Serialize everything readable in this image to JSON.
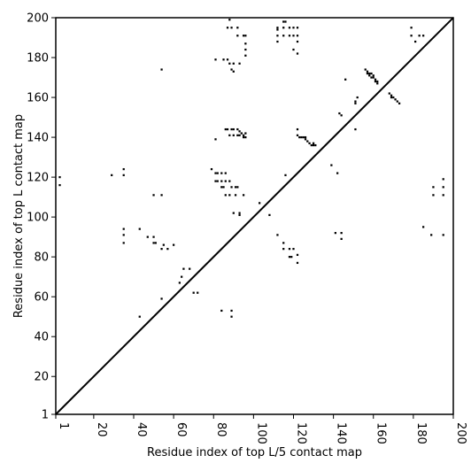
{
  "chart_data": {
    "type": "heatmap",
    "title": "",
    "xlabel": "Residue index of top L/5 contact map",
    "ylabel": "Residue index of top L contact map",
    "xlim": [
      1,
      200
    ],
    "ylim": [
      1,
      200
    ],
    "x_ticks": [
      1,
      20,
      40,
      60,
      80,
      100,
      120,
      140,
      160,
      180,
      200
    ],
    "y_ticks": [
      1,
      20,
      40,
      60,
      80,
      100,
      120,
      140,
      160,
      180,
      200
    ],
    "x_tick_labels": [
      "1",
      "20",
      "40",
      "60",
      "80",
      "100",
      "120",
      "140",
      "160",
      "180",
      "200"
    ],
    "y_tick_labels": [
      "1",
      "20",
      "40",
      "60",
      "80",
      "100",
      "120",
      "140",
      "160",
      "180",
      "200"
    ],
    "x_tick_rotation": -90,
    "diagonal": [
      [
        1,
        1
      ],
      [
        200,
        200
      ]
    ],
    "grid": false,
    "colors": {
      "contact": "#000000",
      "background": "#ffffff"
    },
    "lower_triangle_contacts": [
      [
        29,
        121
      ],
      [
        35,
        121
      ],
      [
        35,
        124
      ],
      [
        35,
        87
      ],
      [
        35,
        91
      ],
      [
        35,
        94
      ],
      [
        43,
        94
      ],
      [
        43,
        50
      ],
      [
        47,
        90
      ],
      [
        50,
        87
      ],
      [
        51,
        87
      ],
      [
        50,
        90
      ],
      [
        54,
        84
      ],
      [
        55,
        86
      ],
      [
        57,
        84
      ],
      [
        60,
        86
      ],
      [
        54,
        59
      ],
      [
        54,
        111
      ],
      [
        50,
        111
      ],
      [
        63,
        67
      ],
      [
        64,
        70
      ],
      [
        65,
        74
      ],
      [
        68,
        74
      ],
      [
        70,
        62
      ],
      [
        72,
        62
      ],
      [
        79,
        124
      ],
      [
        81,
        122
      ],
      [
        81,
        118
      ],
      [
        82,
        118
      ],
      [
        82,
        122
      ],
      [
        84,
        122
      ],
      [
        84,
        118
      ],
      [
        86,
        118
      ],
      [
        86,
        122
      ],
      [
        88,
        118
      ],
      [
        84,
        115
      ],
      [
        85,
        115
      ],
      [
        86,
        111
      ],
      [
        89,
        115
      ],
      [
        88,
        111
      ],
      [
        91,
        111
      ],
      [
        91,
        115
      ],
      [
        92,
        115
      ],
      [
        95,
        111
      ],
      [
        90,
        102
      ],
      [
        93,
        101
      ],
      [
        93,
        102
      ],
      [
        84,
        53
      ],
      [
        89,
        53
      ],
      [
        89,
        50
      ],
      [
        103,
        107
      ],
      [
        108,
        101
      ],
      [
        112,
        91
      ],
      [
        115,
        87
      ],
      [
        115,
        84
      ],
      [
        118,
        84
      ],
      [
        118,
        80
      ],
      [
        119,
        80
      ],
      [
        120,
        84
      ],
      [
        122,
        81
      ],
      [
        122,
        77
      ],
      [
        116,
        121
      ],
      [
        139,
        126
      ],
      [
        141,
        92
      ],
      [
        142,
        122
      ],
      [
        144,
        92
      ],
      [
        144,
        89
      ],
      [
        185,
        95
      ],
      [
        189,
        91
      ],
      [
        190,
        111
      ],
      [
        190,
        115
      ],
      [
        195,
        115
      ],
      [
        195,
        111
      ],
      [
        195,
        119
      ],
      [
        195,
        91
      ]
    ],
    "upper_triangle_contacts": [
      [
        3,
        120
      ],
      [
        3,
        116
      ],
      [
        54,
        174
      ],
      [
        81,
        179
      ],
      [
        85,
        179
      ],
      [
        87,
        179
      ],
      [
        88,
        177
      ],
      [
        89,
        174
      ],
      [
        90,
        177
      ],
      [
        90,
        173
      ],
      [
        93,
        177
      ],
      [
        87,
        195
      ],
      [
        89,
        195
      ],
      [
        92,
        195
      ],
      [
        92,
        191
      ],
      [
        95,
        191
      ],
      [
        96,
        191
      ],
      [
        96,
        187
      ],
      [
        96,
        184
      ],
      [
        96,
        181
      ],
      [
        88,
        199
      ],
      [
        81,
        139
      ],
      [
        86,
        144
      ],
      [
        87,
        144
      ],
      [
        89,
        144
      ],
      [
        88,
        141
      ],
      [
        90,
        141
      ],
      [
        90,
        144
      ],
      [
        92,
        144
      ],
      [
        92,
        141
      ],
      [
        93,
        141
      ],
      [
        93,
        143
      ],
      [
        94,
        142
      ],
      [
        95,
        140
      ],
      [
        95,
        141
      ],
      [
        96,
        142
      ],
      [
        96,
        140
      ],
      [
        112,
        195
      ],
      [
        112,
        194
      ],
      [
        112,
        191
      ],
      [
        112,
        188
      ],
      [
        115,
        195
      ],
      [
        115,
        191
      ],
      [
        115,
        198
      ],
      [
        116,
        198
      ],
      [
        118,
        195
      ],
      [
        118,
        191
      ],
      [
        120,
        195
      ],
      [
        120,
        191
      ],
      [
        120,
        184
      ],
      [
        122,
        195
      ],
      [
        122,
        191
      ],
      [
        122,
        188
      ],
      [
        122,
        182
      ],
      [
        122,
        144
      ],
      [
        122,
        141
      ],
      [
        123,
        140
      ],
      [
        124,
        140
      ],
      [
        125,
        140
      ],
      [
        126,
        140
      ],
      [
        126,
        139
      ],
      [
        127,
        138
      ],
      [
        128,
        137
      ],
      [
        129,
        136
      ],
      [
        130,
        137
      ],
      [
        130,
        136
      ],
      [
        131,
        136
      ],
      [
        143,
        152
      ],
      [
        144,
        151
      ],
      [
        146,
        169
      ],
      [
        151,
        158
      ],
      [
        151,
        157
      ],
      [
        151,
        144
      ],
      [
        152,
        160
      ],
      [
        156,
        174
      ],
      [
        157,
        173
      ],
      [
        157,
        172
      ],
      [
        158,
        172
      ],
      [
        158,
        171
      ],
      [
        159,
        172
      ],
      [
        159,
        170
      ],
      [
        160,
        171
      ],
      [
        160,
        170
      ],
      [
        161,
        169
      ],
      [
        161,
        168
      ],
      [
        162,
        168
      ],
      [
        162,
        167
      ],
      [
        168,
        162
      ],
      [
        169,
        161
      ],
      [
        169,
        160
      ],
      [
        170,
        160
      ],
      [
        171,
        159
      ],
      [
        172,
        158
      ],
      [
        173,
        157
      ],
      [
        179,
        195
      ],
      [
        179,
        191
      ],
      [
        181,
        188
      ],
      [
        183,
        191
      ],
      [
        185,
        191
      ]
    ]
  }
}
